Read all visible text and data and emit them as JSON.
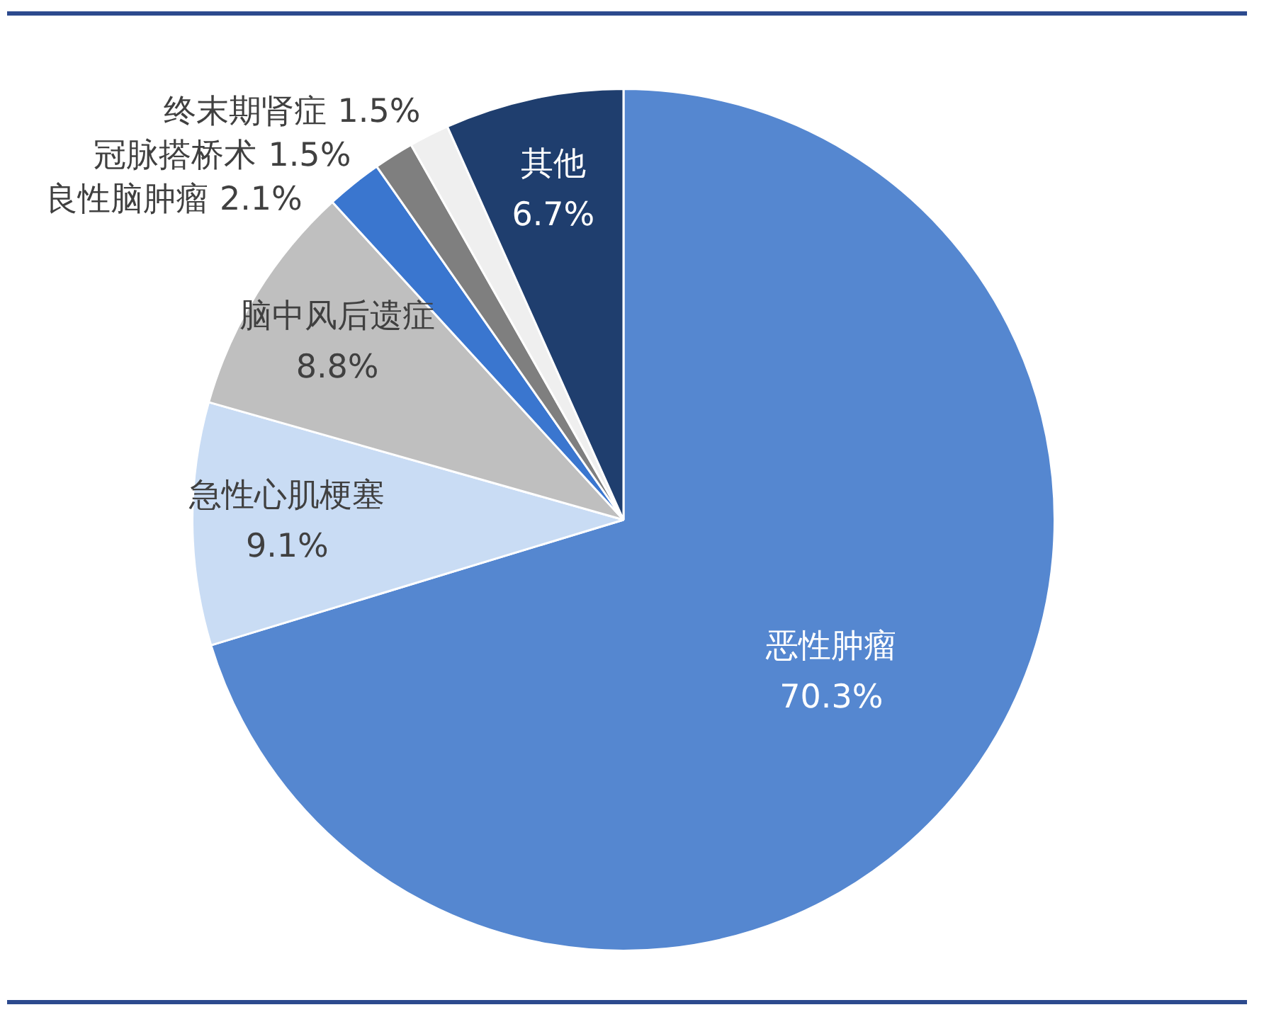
{
  "chart_data": {
    "type": "pie",
    "categories": [
      "恶性肿瘤",
      "急性心肌梗塞",
      "脑中风后遗症",
      "良性脑肿瘤",
      "冠脉搭桥术",
      "终末期肾症",
      "其他"
    ],
    "values": [
      70.3,
      9.1,
      8.8,
      2.1,
      1.5,
      1.5,
      6.7
    ],
    "colors": [
      "#5587d0",
      "#c9dcf4",
      "#bfbfbf",
      "#3a76cf",
      "#7f7f7f",
      "#efefef",
      "#1f3e6e"
    ],
    "value_labels": [
      "70.3%",
      "9.1%",
      "8.8%",
      "2.1%",
      "1.5%",
      "1.5%",
      "6.7%"
    ]
  }
}
